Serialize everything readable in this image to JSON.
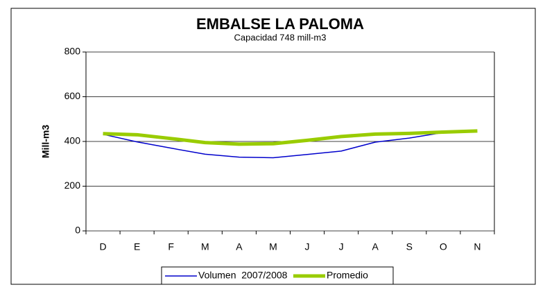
{
  "chart_data": {
    "type": "line",
    "title": "EMBALSE LA PALOMA",
    "subtitle": "Capacidad 748 mill-m3",
    "y_label": "Mill-m3",
    "categories": [
      "D",
      "E",
      "F",
      "M",
      "A",
      "M",
      "J",
      "J",
      "A",
      "S",
      "O",
      "N"
    ],
    "series": [
      {
        "name": "Volumen  2007/2008",
        "color": "#0000cc",
        "values": [
          432,
          398,
          370,
          343,
          330,
          327,
          342,
          357,
          397,
          415,
          440,
          null
        ]
      },
      {
        "name": "Promedio",
        "color": "#99cc00",
        "values": [
          435,
          430,
          413,
          395,
          388,
          390,
          405,
          422,
          433,
          436,
          442,
          447
        ]
      }
    ],
    "ylim": [
      0,
      800
    ],
    "yticks": [
      0,
      200,
      400,
      600,
      800
    ],
    "grid": true
  }
}
